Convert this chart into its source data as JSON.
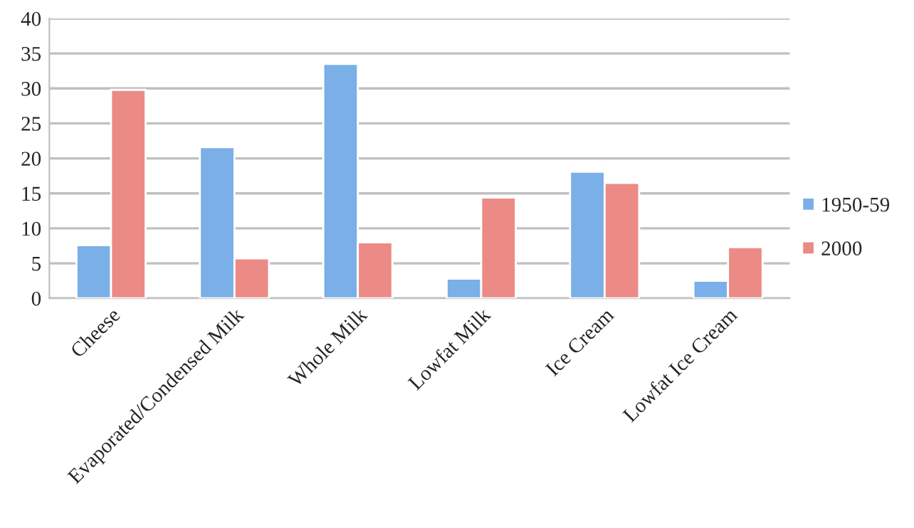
{
  "chart_data": {
    "type": "bar",
    "categories": [
      "Cheese",
      "Evaporated/Condensed Milk",
      "Whole Milk",
      "Lowfat Milk",
      "Ice Cream",
      "Lowfat Ice Cream"
    ],
    "series": [
      {
        "name": "1950-59",
        "color": "#7aafe8",
        "values": [
          7.6,
          21.6,
          33.5,
          2.8,
          18.1,
          2.5
        ]
      },
      {
        "name": "2000",
        "color": "#ec8a86",
        "values": [
          29.8,
          5.7,
          8.0,
          14.4,
          16.5,
          7.3
        ]
      }
    ],
    "ylim": [
      0,
      40
    ],
    "yticks": [
      0,
      5,
      10,
      15,
      20,
      25,
      30,
      35,
      40
    ],
    "grid": "y",
    "legend": "right"
  }
}
